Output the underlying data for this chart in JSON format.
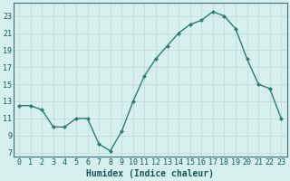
{
  "x": [
    0,
    1,
    2,
    3,
    4,
    5,
    6,
    7,
    8,
    9,
    10,
    11,
    12,
    13,
    14,
    15,
    16,
    17,
    18,
    19,
    20,
    21,
    22,
    23
  ],
  "y": [
    12.5,
    12.5,
    12.0,
    10.0,
    10.0,
    11.0,
    11.0,
    8.0,
    7.2,
    9.5,
    13.0,
    16.0,
    18.0,
    19.5,
    21.0,
    22.0,
    22.5,
    23.5,
    23.0,
    21.5,
    18.0,
    15.0,
    14.5,
    11.0
  ],
  "line_color": "#2e7d6e",
  "marker": "D",
  "marker_size": 2,
  "bg_color": "#d6f0ee",
  "grid_color": "#c0d8d4",
  "xlabel": "Humidex (Indice chaleur)",
  "xlabel_fontsize": 7,
  "ylabel_ticks": [
    7,
    9,
    11,
    13,
    15,
    17,
    19,
    21,
    23
  ],
  "xlim": [
    -0.5,
    23.5
  ],
  "ylim": [
    6.5,
    24.5
  ],
  "tick_fontsize": 6,
  "line_width": 1.0
}
